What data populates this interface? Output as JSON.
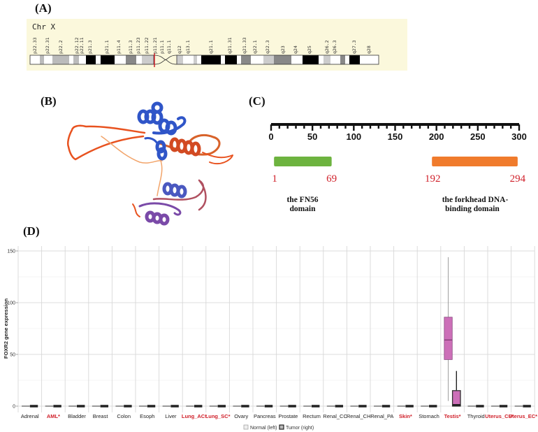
{
  "panels": {
    "a": "(A)",
    "b": "(B)",
    "c": "(C)",
    "d": "(D)"
  },
  "chromosome": {
    "title": "Chr X",
    "bands": [
      "p22.33",
      "p22.31",
      "p22.2",
      "p22.12",
      "p22.11",
      "p21.3",
      "p21.1",
      "p11.4",
      "p11.3",
      "p11.23",
      "p11.22",
      "p11.21",
      "p11.1",
      "q11.1",
      "q12",
      "q13.1",
      "q21.1",
      "q21.31",
      "q21.33",
      "q22.1",
      "q22.3",
      "q23",
      "q24",
      "q25",
      "q26.2",
      "q26.3",
      "q27.3",
      "q28"
    ],
    "highlight_band": "p11.21",
    "highlight_color": "#d0202a"
  },
  "protein_structure": {
    "colors": {
      "high_confidence": "#2f55c8",
      "low_confidence": "#e8521f",
      "medium": "#7a4aa8"
    }
  },
  "domains": {
    "ruler": {
      "min": 0,
      "max": 300,
      "ticks": [
        "0",
        "50",
        "100",
        "150",
        "200",
        "250",
        "300"
      ]
    },
    "items": [
      {
        "start": 1,
        "end": 69,
        "start_label": "1",
        "end_label": "69",
        "name_line1": "the FN56",
        "name_line2": "domain",
        "color": "#6db33f"
      },
      {
        "start": 192,
        "end": 294,
        "start_label": "192",
        "end_label": "294",
        "name_line1": "the forkhead DNA-",
        "name_line2": "binding domain",
        "color": "#f07b2c"
      }
    ]
  },
  "chart_data": {
    "type": "box",
    "ylabel": "FOXR2 gene expression",
    "ylim": [
      0,
      150
    ],
    "yticks": [
      "0",
      "50",
      "100",
      "150"
    ],
    "grid": true,
    "legend": {
      "position": "bottom",
      "entries": [
        "Normal (left)",
        "Tumor (right)"
      ]
    },
    "colors": {
      "significant_label": "#d0202a",
      "normal_label": "#222222",
      "box_fill": "#cc6fb8",
      "tumor_zero": "#222222",
      "normal_zero": "#777777"
    },
    "categories": [
      {
        "name": "Adrenal",
        "significant": false
      },
      {
        "name": "AML*",
        "significant": true
      },
      {
        "name": "Bladder",
        "significant": false
      },
      {
        "name": "Breast",
        "significant": false
      },
      {
        "name": "Colon",
        "significant": false
      },
      {
        "name": "Esoph",
        "significant": false
      },
      {
        "name": "Liver",
        "significant": false
      },
      {
        "name": "Lung_AC*",
        "significant": true
      },
      {
        "name": "Lung_SC*",
        "significant": true
      },
      {
        "name": "Ovary",
        "significant": false
      },
      {
        "name": "Pancreas",
        "significant": false
      },
      {
        "name": "Prostate",
        "significant": false
      },
      {
        "name": "Rectum",
        "significant": false
      },
      {
        "name": "Renal_CC",
        "significant": false
      },
      {
        "name": "Renal_CH",
        "significant": false
      },
      {
        "name": "Renal_PA",
        "significant": false
      },
      {
        "name": "Skin*",
        "significant": true
      },
      {
        "name": "Stomach",
        "significant": false
      },
      {
        "name": "Testis*",
        "significant": true,
        "normal": {
          "min": 5,
          "q1": 45,
          "median": 64,
          "q3": 86,
          "max": 144
        },
        "tumor": {
          "min": 0,
          "q1": 0,
          "median": 1,
          "q3": 15,
          "max": 34
        }
      },
      {
        "name": "Thyroid",
        "significant": false
      },
      {
        "name": "Uterus_CS*",
        "significant": true
      },
      {
        "name": "Uterus_EC*",
        "significant": true
      }
    ],
    "default_box": {
      "min": 0,
      "q1": 0,
      "median": 0,
      "q3": 0,
      "max": 0
    }
  }
}
